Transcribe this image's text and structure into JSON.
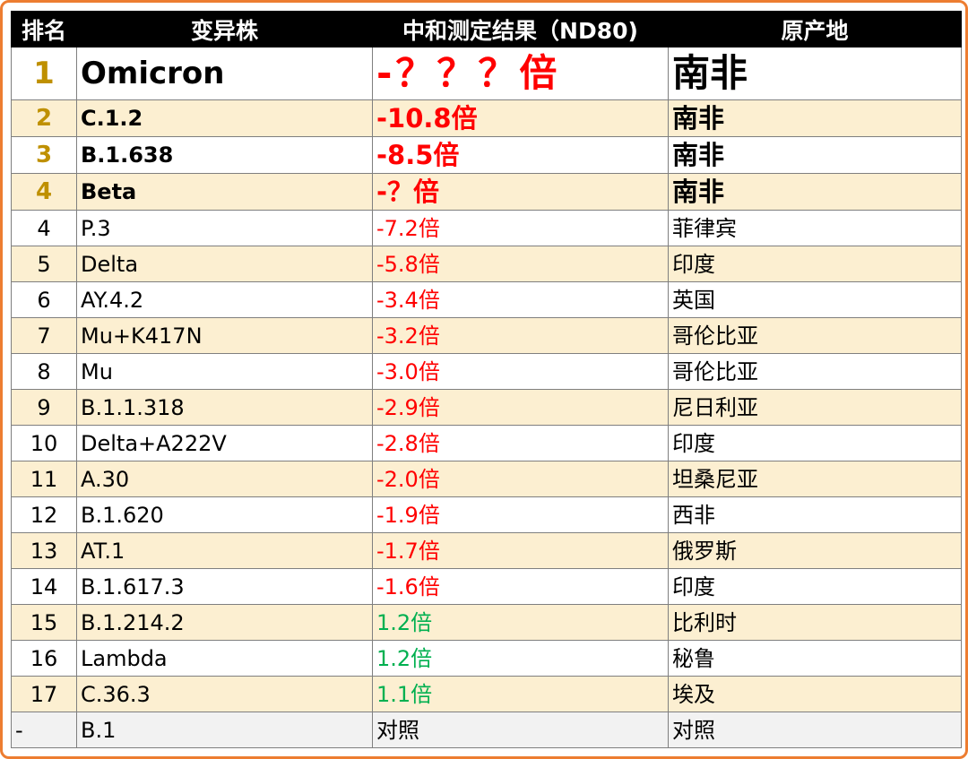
{
  "headers": {
    "rank": "排名",
    "variant": "变异株",
    "result": "中和测定结果（ND80)",
    "origin": "原产地"
  },
  "rows": [
    {
      "rank": "1",
      "variant": "Omicron",
      "result": "-？？？倍",
      "origin": "南非"
    },
    {
      "rank": "2",
      "variant": "C.1.2",
      "result": "-10.8倍",
      "origin": "南非"
    },
    {
      "rank": "3",
      "variant": "B.1.638",
      "result": "-8.5倍",
      "origin": "南非"
    },
    {
      "rank": "4",
      "variant": "Beta",
      "result": "-？倍",
      "origin": "南非"
    },
    {
      "rank": "4",
      "variant": "P.3",
      "result": "-7.2倍",
      "origin": "菲律宾"
    },
    {
      "rank": "5",
      "variant": "Delta",
      "result": "-5.8倍",
      "origin": "印度"
    },
    {
      "rank": "6",
      "variant": "AY.4.2",
      "result": "-3.4倍",
      "origin": "英国"
    },
    {
      "rank": "7",
      "variant": "Mu+K417N",
      "result": "-3.2倍",
      "origin": "哥伦比亚"
    },
    {
      "rank": "8",
      "variant": "Mu",
      "result": "-3.0倍",
      "origin": "哥伦比亚"
    },
    {
      "rank": "9",
      "variant": "B.1.1.318",
      "result": "-2.9倍",
      "origin": "尼日利亚"
    },
    {
      "rank": "10",
      "variant": "Delta+A222V",
      "result": "-2.8倍",
      "origin": "印度"
    },
    {
      "rank": "11",
      "variant": "A.30",
      "result": "-2.0倍",
      "origin": "坦桑尼亚"
    },
    {
      "rank": "12",
      "variant": "B.1.620",
      "result": "-1.9倍",
      "origin": "西非"
    },
    {
      "rank": "13",
      "variant": "AT.1",
      "result": "-1.7倍",
      "origin": "俄罗斯"
    },
    {
      "rank": "14",
      "variant": "B.1.617.3",
      "result": "-1.6倍",
      "origin": "印度"
    },
    {
      "rank": "15",
      "variant": "B.1.214.2",
      "result": "1.2倍",
      "origin": "比利时"
    },
    {
      "rank": "16",
      "variant": "Lambda",
      "result": "1.2倍",
      "origin": "秘鲁"
    },
    {
      "rank": "17",
      "variant": "C.36.3",
      "result": "1.1倍",
      "origin": "埃及"
    },
    {
      "rank": "-",
      "variant": "B.1",
      "result": "对照",
      "origin": "对照"
    }
  ],
  "colors": {
    "border_accent": "#ed7d31",
    "header_bg": "#000000",
    "alt_row_bg": "#fcefd1",
    "rank_gold": "#bf9000",
    "negative_red": "#ff0000",
    "positive_green": "#00b050"
  }
}
